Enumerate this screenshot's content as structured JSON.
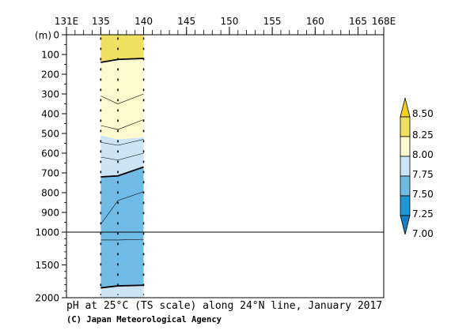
{
  "chart_data": {
    "type": "heatmap",
    "title": "pH at 25°C (TS scale) along 24°N line, January 2017",
    "credit": "(C) Japan Meteorological Agency",
    "y_unit_label": "(m)",
    "x_ticks": [
      {
        "value": 131,
        "label": "131E"
      },
      {
        "value": 135,
        "label": "135"
      },
      {
        "value": 140,
        "label": "140"
      },
      {
        "value": 145,
        "label": "145"
      },
      {
        "value": 150,
        "label": "150"
      },
      {
        "value": 155,
        "label": "155"
      },
      {
        "value": 160,
        "label": "160"
      },
      {
        "value": 165,
        "label": "165"
      },
      {
        "value": 168,
        "label": "168E"
      }
    ],
    "x_range": [
      131,
      168
    ],
    "y_upper_ticks": [
      0,
      100,
      200,
      300,
      400,
      500,
      600,
      700,
      800,
      900,
      1000
    ],
    "y_lower_ticks": [
      1500,
      2000
    ],
    "y_upper_range": [
      0,
      1000
    ],
    "y_lower_range": [
      1000,
      2000
    ],
    "data_lon_range": [
      135,
      140
    ],
    "station_lons": [
      135.0,
      137.0,
      140.0
    ],
    "bands": [
      {
        "color": "#f0e060",
        "top": [
          0,
          0,
          0
        ],
        "bottom": [
          140,
          125,
          120
        ]
      },
      {
        "color": "#fdfad0",
        "top": [
          140,
          125,
          120
        ],
        "bottom": [
          510,
          530,
          520
        ]
      },
      {
        "color": "#cce4f4",
        "top": [
          510,
          530,
          520
        ],
        "bottom": [
          720,
          715,
          670
        ]
      },
      {
        "color": "#70bbe6",
        "top": [
          720,
          715,
          670
        ],
        "bottom": [
          1850,
          1820,
          1810
        ]
      },
      {
        "color": "#cce4f4",
        "top": [
          1850,
          1820,
          1810
        ],
        "bottom": [
          2000,
          2000,
          2000
        ]
      }
    ],
    "contours": [
      {
        "level": 8.2,
        "bold": true,
        "depths": [
          140,
          125,
          120
        ]
      },
      {
        "level": 8.1,
        "bold": false,
        "depths": [
          310,
          350,
          300
        ]
      },
      {
        "level": 8.0,
        "bold": false,
        "depths": [
          460,
          480,
          430
        ]
      },
      {
        "level": 7.9,
        "bold": false,
        "depths": [
          545,
          560,
          530
        ]
      },
      {
        "level": 7.8,
        "bold": false,
        "depths": [
          620,
          635,
          600
        ]
      },
      {
        "level": 7.7,
        "bold": true,
        "depths": [
          720,
          715,
          670
        ]
      },
      {
        "level": 7.6,
        "bold": false,
        "depths": [
          960,
          840,
          795
        ]
      },
      {
        "level": 7.5,
        "bold": false,
        "depths": [
          1120,
          1120,
          1110
        ]
      },
      {
        "level": 7.4,
        "bold": true,
        "depths": [
          1850,
          1820,
          1810
        ]
      }
    ],
    "colorbar": {
      "levels": [
        "7.00",
        "7.25",
        "7.50",
        "7.75",
        "8.00",
        "8.25",
        "8.50"
      ],
      "colors": [
        "#1e96d4",
        "#70bbe6",
        "#cce4f4",
        "#fdfad0",
        "#f0e060"
      ],
      "low_color": "#1a7ec2",
      "high_color": "#f0d020"
    }
  }
}
